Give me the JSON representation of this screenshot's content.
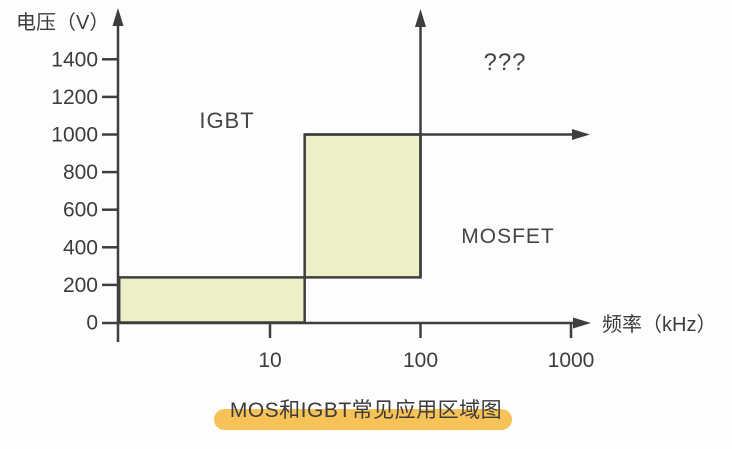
{
  "page": {
    "background_color": "#fdfdfd",
    "caption": {
      "text": "MOS和IGBT常见应用区域图",
      "highlight_color": "#f7c258"
    }
  },
  "chart_data": {
    "type": "area",
    "title": "MOS和IGBT常见应用区域图",
    "x_axis": {
      "label": "频率（kHz）",
      "unit": "kHz",
      "scale": "log",
      "ticks": [
        10,
        100,
        1000
      ]
    },
    "y_axis": {
      "label": "电压（V）",
      "unit": "V",
      "scale": "linear",
      "ticks": [
        0,
        200,
        400,
        600,
        800,
        1000,
        1200,
        1400
      ],
      "ylim": [
        0,
        1500
      ]
    },
    "regions": [
      {
        "name": "low-voltage-low-frequency-region",
        "f_range_khz": [
          1,
          17
        ],
        "v_range": [
          0,
          240
        ]
      },
      {
        "name": "mid-voltage-mid-frequency-region",
        "f_range_khz": [
          17,
          100
        ],
        "v_range": [
          240,
          1000
        ]
      }
    ],
    "reference_arrows": [
      {
        "direction": "right",
        "at_v": 1000,
        "from_f_khz": 17
      },
      {
        "direction": "up",
        "at_f_khz": 100,
        "from_v": 240
      }
    ],
    "annotations": [
      {
        "id": "igbt-label",
        "text": "IGBT"
      },
      {
        "id": "mosfet-label",
        "text": "MOSFET"
      },
      {
        "id": "unknown-region-label",
        "text": "???"
      }
    ],
    "region_fill_color": "#ecefc8",
    "region_stroke_color": "#3f3f3f",
    "axis_color": "#3e3e3e",
    "text_color": "#3c3c3c",
    "grid": false,
    "legend": false
  }
}
